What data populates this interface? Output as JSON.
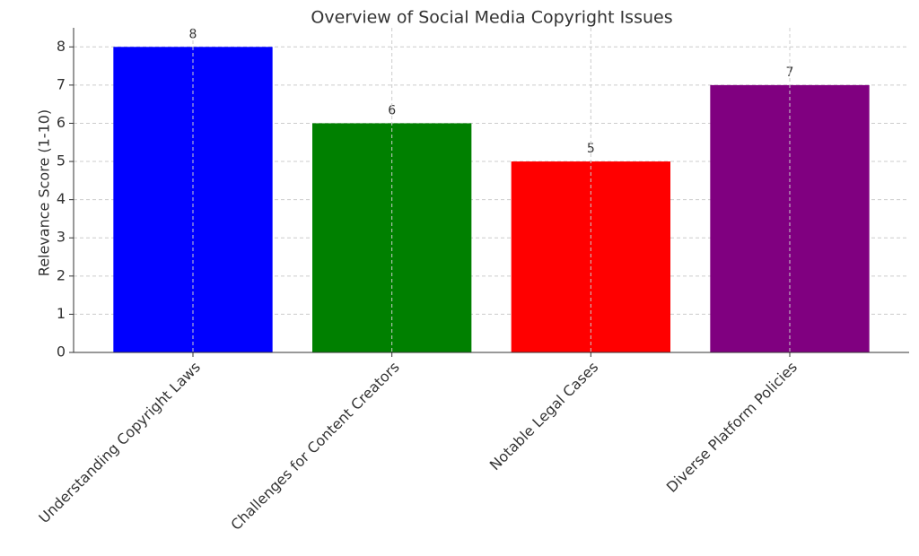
{
  "chart_data": {
    "type": "bar",
    "title": "Overview of Social Media Copyright Issues",
    "y_label": "Relevance Score (1-10)",
    "categories": [
      "Understanding Copyright Laws",
      "Challenges for Content Creators",
      "Notable Legal Cases",
      "Diverse Platform Policies"
    ],
    "values": [
      8,
      6,
      5,
      7
    ],
    "colors": [
      "#0000ff",
      "#008000",
      "#ff0000",
      "#800080"
    ],
    "ylim": [
      0,
      8.5
    ],
    "yticks": [
      0,
      1,
      2,
      3,
      4,
      5,
      6,
      7,
      8
    ],
    "grid": true
  }
}
